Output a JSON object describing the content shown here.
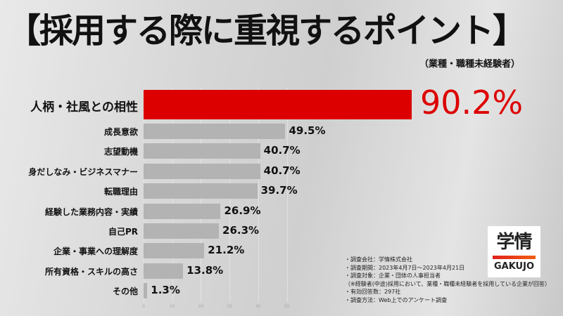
{
  "chart_data": {
    "type": "bar",
    "orientation": "horizontal",
    "title": "【採用する際に重視するポイント】",
    "subtitle": "（業種・職種未経験者）",
    "categories": [
      "人柄・社風との相性",
      "成長意欲",
      "志望動機",
      "身だしなみ・ビジネスマナー",
      "転職理由",
      "経験した業務内容・実績",
      "自己PR",
      "企業・事業への理解度",
      "所有資格・スキルの高さ",
      "その他"
    ],
    "values": [
      90.2,
      49.5,
      40.7,
      40.7,
      39.7,
      26.9,
      26.3,
      21.2,
      13.8,
      1.3
    ],
    "value_labels": [
      "90.2%",
      "49.5%",
      "40.7%",
      "40.7%",
      "39.7%",
      "26.9%",
      "26.3%",
      "21.2%",
      "13.8%",
      "1.3%"
    ],
    "x_ticks": [
      "0",
      "10",
      "20",
      "30",
      "40",
      "50"
    ],
    "xlim": [
      0,
      50
    ],
    "highlight_color": "#dd0000",
    "bar_color": "#b3b3b3"
  },
  "notes": [
    "・調査会社：学情株式会社",
    "・調査期間：2023年4月7日～2023年4月21日",
    "・調査対象：企業・団体の人事担当者",
    "（※経験者(中途)採用において、業種・職種未経験者を採用している企業が回答）",
    "・有効回答数：297社",
    "・調査方法：Web上でのアンケート調査"
  ],
  "logo": {
    "kanji": "学情",
    "latin": "GAKUJO"
  }
}
